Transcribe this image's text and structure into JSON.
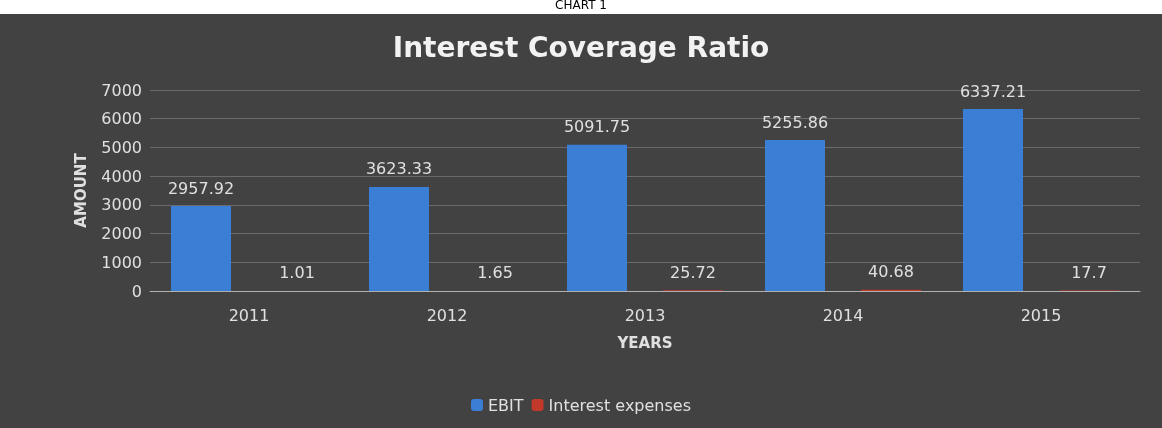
{
  "chart_data": {
    "type": "bar",
    "title": "Interest Coverage Ratio",
    "xlabel": "YEARS",
    "ylabel": "AMOUNT",
    "annotations": [
      "CHART 1"
    ],
    "categories": [
      "2011",
      "2012",
      "2013",
      "2014",
      "2015"
    ],
    "series": [
      {
        "name": "EBIT",
        "color": "#3a7fd5",
        "values": [
          2957.92,
          3623.33,
          5091.75,
          5255.86,
          6337.21
        ]
      },
      {
        "name": "Interest expenses",
        "color": "#c0392b",
        "values": [
          1.01,
          1.65,
          25.72,
          40.68,
          17.7
        ]
      }
    ],
    "ylim": [
      0,
      7000
    ],
    "yticks": [
      0,
      1000,
      2000,
      3000,
      4000,
      5000,
      6000,
      7000
    ],
    "grid": "y",
    "legend": "bottom",
    "data_labels": true
  }
}
